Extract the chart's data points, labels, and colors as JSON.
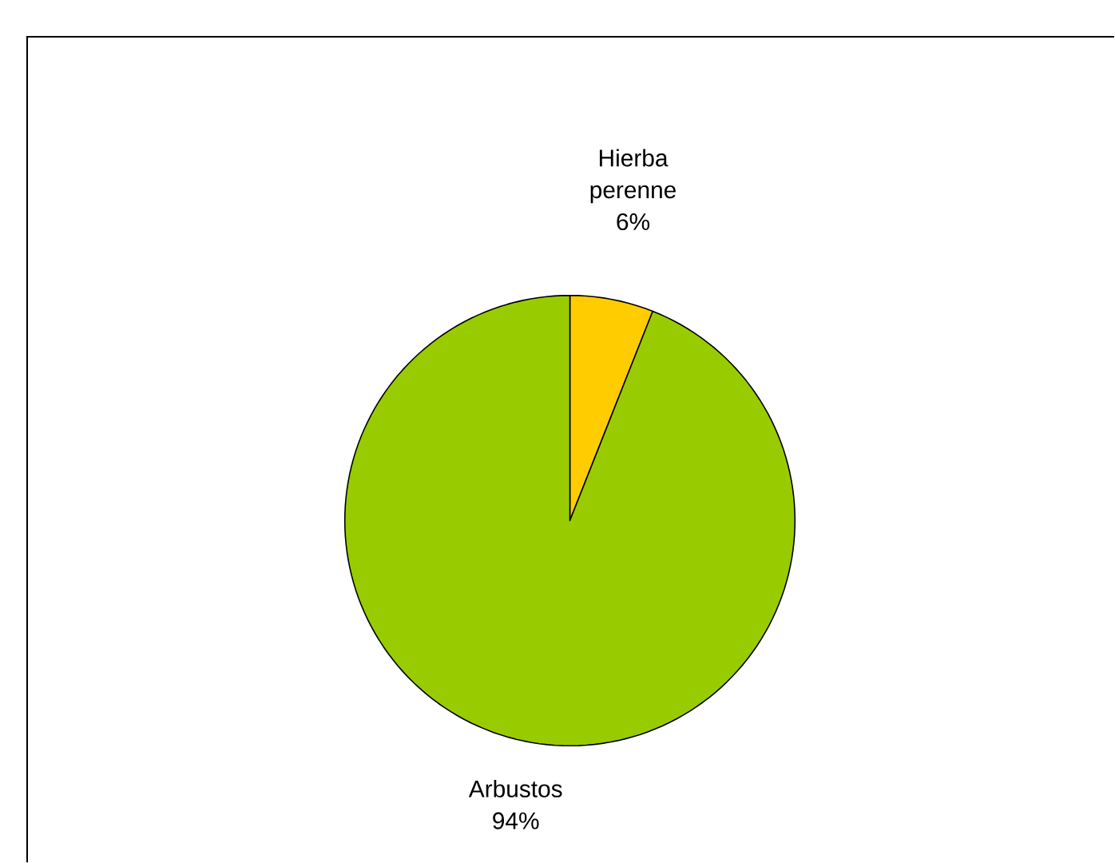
{
  "chart_data": {
    "type": "pie",
    "categories": [
      "Hierba perenne",
      "Arbustos"
    ],
    "values": [
      6,
      94
    ],
    "colors": [
      "#ffcc00",
      "#99cc00"
    ],
    "value_labels": [
      "6%",
      "94%"
    ]
  }
}
